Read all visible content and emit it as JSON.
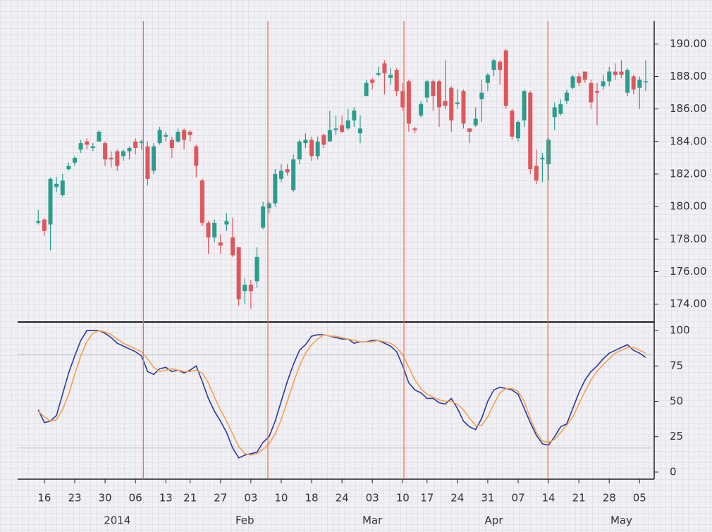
{
  "chart_data": {
    "type": "candlestick",
    "up_color": "#2a9d8f",
    "down_color": "#e0565b",
    "xlim": [
      -3.4,
      101.4
    ],
    "ylim": [
      172.9,
      191.4
    ],
    "yticks": [
      {
        "value": 174,
        "label": "174.00"
      },
      {
        "value": 176,
        "label": "176.00"
      },
      {
        "value": 178,
        "label": "178.00"
      },
      {
        "value": 180,
        "label": "180.00"
      },
      {
        "value": 182,
        "label": "182.00"
      },
      {
        "value": 184,
        "label": "184.00"
      },
      {
        "value": 186,
        "label": "186.00"
      },
      {
        "value": 188,
        "label": "188.00"
      },
      {
        "value": 190,
        "label": "190.00"
      }
    ],
    "xticks": [
      {
        "value": 1,
        "label": "16"
      },
      {
        "value": 6,
        "label": "23"
      },
      {
        "value": 11,
        "label": "30"
      },
      {
        "value": 16,
        "label": "06"
      },
      {
        "value": 21,
        "label": "13"
      },
      {
        "value": 25,
        "label": "21"
      },
      {
        "value": 30,
        "label": "27"
      },
      {
        "value": 35,
        "label": "03"
      },
      {
        "value": 40,
        "label": "10"
      },
      {
        "value": 45,
        "label": "18"
      },
      {
        "value": 50,
        "label": "24"
      },
      {
        "value": 55,
        "label": "03"
      },
      {
        "value": 60,
        "label": "10"
      },
      {
        "value": 64,
        "label": "17"
      },
      {
        "value": 69,
        "label": "24"
      },
      {
        "value": 74,
        "label": "31"
      },
      {
        "value": 79,
        "label": "07"
      },
      {
        "value": 84,
        "label": "14"
      },
      {
        "value": 89,
        "label": "21"
      },
      {
        "value": 94,
        "label": "28"
      },
      {
        "value": 99,
        "label": "05"
      }
    ],
    "month_labels": [
      {
        "value": 13,
        "label": "2014"
      },
      {
        "value": 34,
        "label": "Feb"
      },
      {
        "value": 55,
        "label": "Mar"
      },
      {
        "value": 75,
        "label": "Apr"
      },
      {
        "value": 96,
        "label": "May"
      }
    ],
    "vlines": [
      17.3,
      37.8,
      60.2,
      83.9
    ],
    "vline_color": "#e8704a",
    "ohlc": [
      [
        179.0,
        179.8,
        178.9,
        179.1
      ],
      [
        179.2,
        179.3,
        178.2,
        178.5
      ],
      [
        178.9,
        181.8,
        177.3,
        181.7
      ],
      [
        181.2,
        181.8,
        180.9,
        181.4
      ],
      [
        180.7,
        182.0,
        180.6,
        181.6
      ],
      [
        182.3,
        182.7,
        182.2,
        182.5
      ],
      [
        182.7,
        183.1,
        182.5,
        183.0
      ],
      [
        183.5,
        184.1,
        183.3,
        183.9
      ],
      [
        184.0,
        184.2,
        183.5,
        183.8
      ],
      [
        183.6,
        183.9,
        183.4,
        183.7
      ],
      [
        184.0,
        184.7,
        184.0,
        184.6
      ],
      [
        183.9,
        184.0,
        182.5,
        182.9
      ],
      [
        183.0,
        183.4,
        182.4,
        182.9
      ],
      [
        183.4,
        183.5,
        182.2,
        182.5
      ],
      [
        183.1,
        183.5,
        182.8,
        183.4
      ],
      [
        183.4,
        183.7,
        182.9,
        183.6
      ],
      [
        184.0,
        184.2,
        183.2,
        183.6
      ],
      [
        183.9,
        184.1,
        183.5,
        184.0
      ],
      [
        183.7,
        184.0,
        181.3,
        181.7
      ],
      [
        182.2,
        183.9,
        182.0,
        183.7
      ],
      [
        183.9,
        184.9,
        183.8,
        184.7
      ],
      [
        184.3,
        184.6,
        184.0,
        184.4
      ],
      [
        184.1,
        184.3,
        183.0,
        183.6
      ],
      [
        184.0,
        184.8,
        183.9,
        184.6
      ],
      [
        184.7,
        184.8,
        183.5,
        184.1
      ],
      [
        184.6,
        184.7,
        184.0,
        184.4
      ],
      [
        183.7,
        183.8,
        181.8,
        182.5
      ],
      [
        181.6,
        181.7,
        178.8,
        179.0
      ],
      [
        179.0,
        179.1,
        177.1,
        178.1
      ],
      [
        178.1,
        179.2,
        177.8,
        179.0
      ],
      [
        177.8,
        178.3,
        177.1,
        177.6
      ],
      [
        178.9,
        179.6,
        178.5,
        179.1
      ],
      [
        178.1,
        179.3,
        176.9,
        177.0
      ],
      [
        177.5,
        177.5,
        173.9,
        174.3
      ],
      [
        174.8,
        175.6,
        174.0,
        175.2
      ],
      [
        175.2,
        175.5,
        173.7,
        174.8
      ],
      [
        175.4,
        177.5,
        175.0,
        176.9
      ],
      [
        178.7,
        180.3,
        178.6,
        180.0
      ],
      [
        179.9,
        180.3,
        179.6,
        180.2
      ],
      [
        180.2,
        182.3,
        180.0,
        182.0
      ],
      [
        181.7,
        182.6,
        181.5,
        182.2
      ],
      [
        182.3,
        182.6,
        181.9,
        182.1
      ],
      [
        181.0,
        183.2,
        180.9,
        182.9
      ],
      [
        182.9,
        184.1,
        182.6,
        184.0
      ],
      [
        183.9,
        184.5,
        183.6,
        184.1
      ],
      [
        184.1,
        184.3,
        182.8,
        183.1
      ],
      [
        183.1,
        184.3,
        182.9,
        184.0
      ],
      [
        184.4,
        184.5,
        183.6,
        183.8
      ],
      [
        184.0,
        185.9,
        184.0,
        184.7
      ],
      [
        184.7,
        185.6,
        184.4,
        184.8
      ],
      [
        185.0,
        185.6,
        184.5,
        184.6
      ],
      [
        184.8,
        186.0,
        184.7,
        185.3
      ],
      [
        185.3,
        186.1,
        184.9,
        185.9
      ],
      [
        184.5,
        185.6,
        183.9,
        184.8
      ],
      [
        186.8,
        187.8,
        186.8,
        187.6
      ],
      [
        187.8,
        187.9,
        187.2,
        187.6
      ],
      [
        188.1,
        188.6,
        188.0,
        188.2
      ],
      [
        188.8,
        189.0,
        186.9,
        188.2
      ],
      [
        187.9,
        188.5,
        187.5,
        188.1
      ],
      [
        188.4,
        188.5,
        186.8,
        187.1
      ],
      [
        187.1,
        187.6,
        185.9,
        186.1
      ],
      [
        187.7,
        187.8,
        184.6,
        185.1
      ],
      [
        184.8,
        184.9,
        184.5,
        184.7
      ],
      [
        185.6,
        186.5,
        185.5,
        186.3
      ],
      [
        186.7,
        187.8,
        186.4,
        187.7
      ],
      [
        187.7,
        187.8,
        185.9,
        186.8
      ],
      [
        187.7,
        187.8,
        184.9,
        186.1
      ],
      [
        186.5,
        189.0,
        186.0,
        186.2
      ],
      [
        187.3,
        187.4,
        184.6,
        185.3
      ],
      [
        186.3,
        187.2,
        186.0,
        186.4
      ],
      [
        187.1,
        187.2,
        184.8,
        185.1
      ],
      [
        184.8,
        184.8,
        183.9,
        184.6
      ],
      [
        185.0,
        186.1,
        184.9,
        185.4
      ],
      [
        186.6,
        187.8,
        185.2,
        187.0
      ],
      [
        187.6,
        188.2,
        187.1,
        188.1
      ],
      [
        188.4,
        189.1,
        188.0,
        189.0
      ],
      [
        188.9,
        189.0,
        187.5,
        188.4
      ],
      [
        189.6,
        189.7,
        186.0,
        186.2
      ],
      [
        185.9,
        186.0,
        184.1,
        184.3
      ],
      [
        184.2,
        185.3,
        184.0,
        185.2
      ],
      [
        185.3,
        187.2,
        184.9,
        187.1
      ],
      [
        187.0,
        187.1,
        182.0,
        182.3
      ],
      [
        182.5,
        183.5,
        181.4,
        181.6
      ],
      [
        182.9,
        183.3,
        181.5,
        183.0
      ],
      [
        182.6,
        184.2,
        181.6,
        184.1
      ],
      [
        185.5,
        186.4,
        184.7,
        186.1
      ],
      [
        185.7,
        186.6,
        185.6,
        186.3
      ],
      [
        186.5,
        187.2,
        186.3,
        187.0
      ],
      [
        187.3,
        188.1,
        187.2,
        188.0
      ],
      [
        188.0,
        188.2,
        187.4,
        187.6
      ],
      [
        188.3,
        188.3,
        187.6,
        187.8
      ],
      [
        187.6,
        187.8,
        186.0,
        186.4
      ],
      [
        187.1,
        187.6,
        185.0,
        187.0
      ],
      [
        187.4,
        188.1,
        187.2,
        187.7
      ],
      [
        187.7,
        188.6,
        187.4,
        188.3
      ],
      [
        188.3,
        188.8,
        187.8,
        188.1
      ],
      [
        188.3,
        189.0,
        187.9,
        188.1
      ],
      [
        187.0,
        188.5,
        186.8,
        188.4
      ],
      [
        188.0,
        188.1,
        186.9,
        187.2
      ],
      [
        187.3,
        188.0,
        186.0,
        187.8
      ],
      [
        187.7,
        189.0,
        187.1,
        187.7
      ]
    ],
    "oscillator": {
      "type": "line",
      "ylim": [
        -5,
        106
      ],
      "yticks": [
        0,
        25,
        50,
        75,
        100
      ],
      "hlines": [
        83,
        17
      ],
      "hline_color": "#c8c8cc",
      "series": [
        {
          "color": "#2b3a9c",
          "values": [
            44,
            35,
            36,
            40,
            55,
            70,
            82,
            93,
            100,
            100,
            100,
            98,
            95,
            91,
            89,
            87,
            85,
            82,
            71,
            69,
            73,
            74,
            71,
            72,
            70,
            72,
            75,
            64,
            52,
            43,
            36,
            28,
            17,
            10,
            12,
            13,
            14,
            21,
            25,
            36,
            50,
            64,
            76,
            86,
            90,
            96,
            97,
            97,
            96,
            95,
            94,
            94,
            91,
            92,
            92,
            93,
            93,
            91,
            89,
            85,
            75,
            63,
            58,
            56,
            52,
            52,
            49,
            48,
            52,
            45,
            36,
            32,
            30,
            38,
            50,
            58,
            60,
            59,
            58,
            55,
            45,
            35,
            26,
            20,
            19,
            25,
            32,
            34,
            45,
            56,
            65,
            71,
            75,
            80,
            84,
            86,
            88,
            90,
            86,
            84,
            81
          ]
        },
        {
          "color": "#f5a04f",
          "values": [
            43,
            39,
            36,
            37,
            44,
            55,
            69,
            82,
            92,
            98,
            100,
            99,
            97,
            94,
            91,
            89,
            87,
            85,
            80,
            74,
            71,
            72,
            73,
            72,
            71,
            71,
            72,
            70,
            63,
            53,
            44,
            36,
            27,
            18,
            13,
            12,
            13,
            16,
            20,
            27,
            37,
            50,
            63,
            75,
            84,
            90,
            94,
            97,
            96,
            96,
            95,
            94,
            93,
            92,
            92,
            92,
            93,
            92,
            91,
            88,
            83,
            74,
            65,
            59,
            55,
            53,
            51,
            50,
            50,
            48,
            44,
            38,
            33,
            33,
            39,
            48,
            56,
            59,
            59,
            57,
            50,
            38,
            28,
            22,
            21,
            23,
            28,
            33,
            39,
            48,
            57,
            65,
            71,
            76,
            80,
            84,
            86,
            88,
            88,
            86,
            84
          ]
        }
      ]
    }
  }
}
